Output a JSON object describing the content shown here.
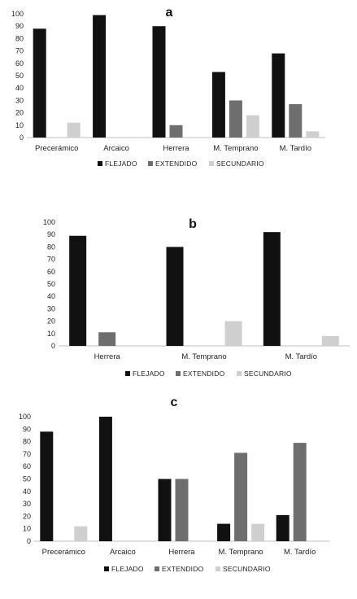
{
  "chart_data": [
    {
      "type": "bar",
      "title": "a",
      "categories": [
        "Precerámico",
        "Arcaico",
        "Herrera",
        "M. Temprano",
        "M. Tardío"
      ],
      "series": [
        {
          "name": "FLEJADO",
          "values": [
            88,
            99,
            90,
            53,
            68
          ],
          "color": "#111111"
        },
        {
          "name": "EXTENDIDO",
          "values": [
            0,
            0,
            10,
            30,
            27
          ],
          "color": "#6e6e6e"
        },
        {
          "name": "SECUNDARIO",
          "values": [
            12,
            0,
            0,
            18,
            5
          ],
          "color": "#cfcfcf"
        }
      ],
      "yticks": [
        "0",
        "10",
        "20",
        "30",
        "40",
        "50",
        "60",
        "70",
        "80",
        "90",
        "100"
      ],
      "ylim": [
        0,
        100
      ],
      "grid": false,
      "legend": "bottom"
    },
    {
      "type": "bar",
      "title": "b",
      "categories": [
        "Herrera",
        "M. Temprano",
        "M. Tardío"
      ],
      "series": [
        {
          "name": "FLEJADO",
          "values": [
            89,
            80,
            92
          ],
          "color": "#111111"
        },
        {
          "name": "EXTENDIDO",
          "values": [
            11,
            0,
            0
          ],
          "color": "#6e6e6e"
        },
        {
          "name": "SECUNDARIO",
          "values": [
            0,
            20,
            8
          ],
          "color": "#cfcfcf"
        }
      ],
      "yticks": [
        "0",
        "10",
        "20",
        "30",
        "40",
        "50",
        "60",
        "70",
        "80",
        "90",
        "100"
      ],
      "ylim": [
        0,
        100
      ],
      "grid": false,
      "legend": "bottom"
    },
    {
      "type": "bar",
      "title": "c",
      "categories": [
        "Precerámico",
        "Arcaico",
        "Herrera",
        "M. Temprano",
        "M. Tardío"
      ],
      "series": [
        {
          "name": "FLEJADO",
          "values": [
            88,
            100,
            50,
            14,
            21
          ],
          "color": "#111111"
        },
        {
          "name": "EXTENDIDO",
          "values": [
            0,
            0,
            50,
            71,
            79
          ],
          "color": "#6e6e6e"
        },
        {
          "name": "SECUNDARIO",
          "values": [
            12,
            0,
            0,
            14,
            0
          ],
          "color": "#cfcfcf"
        }
      ],
      "yticks": [
        "0",
        "10",
        "20",
        "30",
        "40",
        "50",
        "60",
        "70",
        "80",
        "90",
        "100"
      ],
      "ylim": [
        0,
        100
      ],
      "grid": false,
      "legend": "bottom"
    }
  ]
}
